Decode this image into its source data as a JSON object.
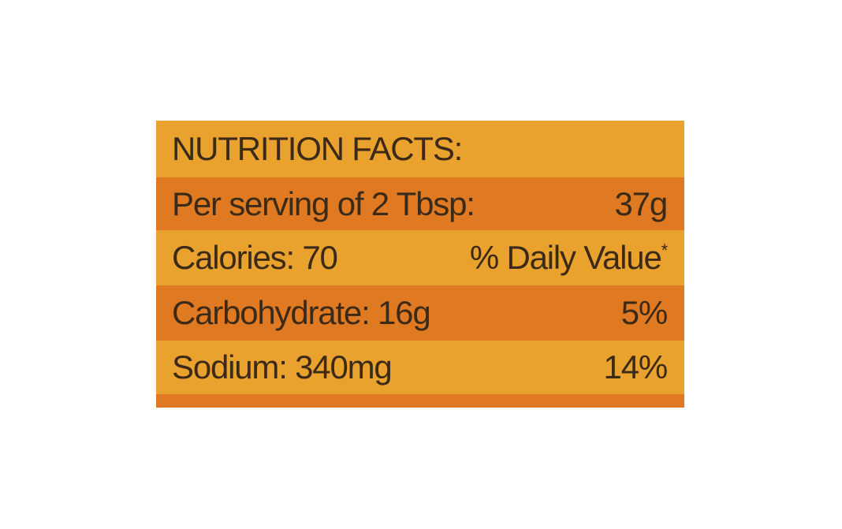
{
  "label": {
    "title": "NUTRITION FACTS:",
    "rows": [
      {
        "label": "Per serving of 2 Tbsp:",
        "value": "37g"
      },
      {
        "label": "Calories: 70",
        "value": "% Daily Value",
        "marker": "*"
      },
      {
        "label": "Carbohydrate: 16g",
        "value": "5%"
      },
      {
        "label": "Sodium: 340mg",
        "value": "14%"
      }
    ]
  }
}
